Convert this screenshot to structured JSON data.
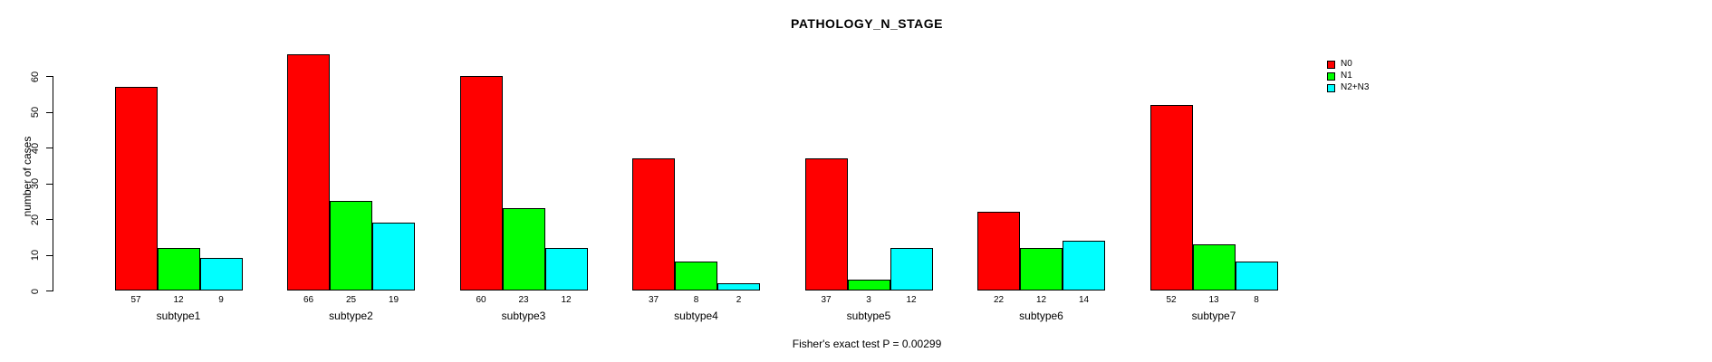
{
  "title": "PATHOLOGY_N_STAGE",
  "footer": "Fisher's exact test P = 0.00299",
  "chart_data": {
    "type": "bar",
    "title": "PATHOLOGY_N_STAGE",
    "xlabel": "",
    "ylabel": "number of cases",
    "ylim": [
      0,
      60
    ],
    "y_ticks": [
      0,
      10,
      20,
      30,
      40,
      50,
      60
    ],
    "grid": false,
    "legend_position": "top-right",
    "categories": [
      "subtype1",
      "subtype2",
      "subtype3",
      "subtype4",
      "subtype5",
      "subtype6",
      "subtype7"
    ],
    "series": [
      {
        "name": "N0",
        "color": "#ff0000",
        "values": [
          57,
          66,
          60,
          37,
          37,
          22,
          52
        ]
      },
      {
        "name": "N1",
        "color": "#00ff00",
        "values": [
          12,
          25,
          23,
          8,
          3,
          12,
          13
        ]
      },
      {
        "name": "N2+N3",
        "color": "#00ffff",
        "values": [
          9,
          19,
          12,
          2,
          12,
          14,
          8
        ]
      }
    ],
    "bar_value_labels_shown": true,
    "annotation": "Fisher's exact test P = 0.00299"
  }
}
